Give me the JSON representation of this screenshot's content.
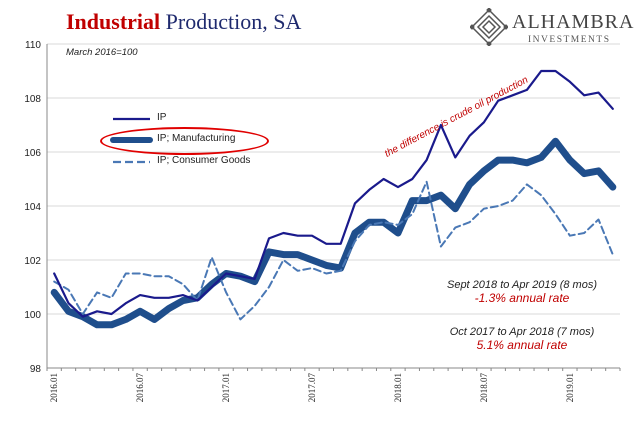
{
  "title_part1": "Industrial",
  "title_part2": "Production, SA",
  "logo": {
    "name": "ALHAMBRA",
    "sub": "INVESTMENTS",
    "mark": "diamond-logo-icon"
  },
  "base_note": "March 2016=100",
  "difference_label": "the difference is crude oil production",
  "annotations": [
    {
      "line1": "Sept 2018 to Apr 2019 (8 mos)",
      "line2": "-1.3% annual rate"
    },
    {
      "line1": "Oct 2017 to Apr 2018 (7 mos)",
      "line2": "5.1% annual rate"
    }
  ],
  "colors": {
    "ip": "#1a1a8c",
    "manufacturing": "#1f4e8c",
    "consumer": "#4a78b5",
    "accent_red": "#c00000"
  },
  "chart_data": {
    "type": "line",
    "title": "Industrial Production, SA",
    "ylim": [
      98,
      110
    ],
    "yticks": [
      98,
      100,
      102,
      104,
      106,
      108,
      110
    ],
    "xtick_labels": [
      "2016.01",
      "2016.07",
      "2017.01",
      "2017.07",
      "2018.01",
      "2018.07",
      "2019.01"
    ],
    "x": [
      "2016.01",
      "2016.02",
      "2016.03",
      "2016.04",
      "2016.05",
      "2016.06",
      "2016.07",
      "2016.08",
      "2016.09",
      "2016.10",
      "2016.11",
      "2016.12",
      "2017.01",
      "2017.02",
      "2017.03",
      "2017.04",
      "2017.05",
      "2017.06",
      "2017.07",
      "2017.08",
      "2017.09",
      "2017.10",
      "2017.11",
      "2017.12",
      "2018.01",
      "2018.02",
      "2018.03",
      "2018.04",
      "2018.05",
      "2018.06",
      "2018.07",
      "2018.08",
      "2018.09",
      "2018.10",
      "2018.11",
      "2018.12",
      "2019.01",
      "2019.02",
      "2019.03",
      "2019.04"
    ],
    "legend_position": "upper-left",
    "series": [
      {
        "name": "IP",
        "values": [
          101.5,
          100.4,
          99.9,
          100.1,
          100.0,
          100.4,
          100.7,
          100.6,
          100.6,
          100.7,
          100.5,
          101.0,
          101.5,
          101.4,
          101.3,
          102.8,
          103.0,
          102.9,
          102.9,
          102.6,
          102.6,
          104.1,
          104.6,
          105.0,
          104.7,
          105.0,
          105.7,
          107.0,
          105.8,
          106.6,
          107.1,
          107.9,
          108.1,
          108.3,
          109.0,
          109.0,
          108.6,
          108.1,
          108.2,
          107.6
        ]
      },
      {
        "name": "IP; Manufacturing",
        "values": [
          100.8,
          100.1,
          99.9,
          99.6,
          99.6,
          99.8,
          100.1,
          99.8,
          100.2,
          100.5,
          100.6,
          101.1,
          101.5,
          101.4,
          101.2,
          102.3,
          102.2,
          102.2,
          102.0,
          101.8,
          101.7,
          103.0,
          103.4,
          103.4,
          103.0,
          104.2,
          104.2,
          104.4,
          103.9,
          104.8,
          105.3,
          105.7,
          105.7,
          105.6,
          105.8,
          106.4,
          105.7,
          105.2,
          105.3,
          104.7
        ]
      },
      {
        "name": "IP; Consumer Goods",
        "values": [
          101.2,
          100.9,
          100.0,
          100.8,
          100.6,
          101.5,
          101.5,
          101.4,
          101.4,
          101.1,
          100.5,
          102.1,
          100.8,
          99.8,
          100.3,
          101.0,
          102.0,
          101.6,
          101.7,
          101.5,
          101.6,
          102.7,
          103.3,
          103.4,
          103.3,
          103.7,
          104.9,
          102.5,
          103.2,
          103.4,
          103.9,
          104.0,
          104.2,
          104.8,
          104.4,
          103.7,
          102.9,
          103.0,
          103.5,
          102.2
        ]
      }
    ]
  }
}
